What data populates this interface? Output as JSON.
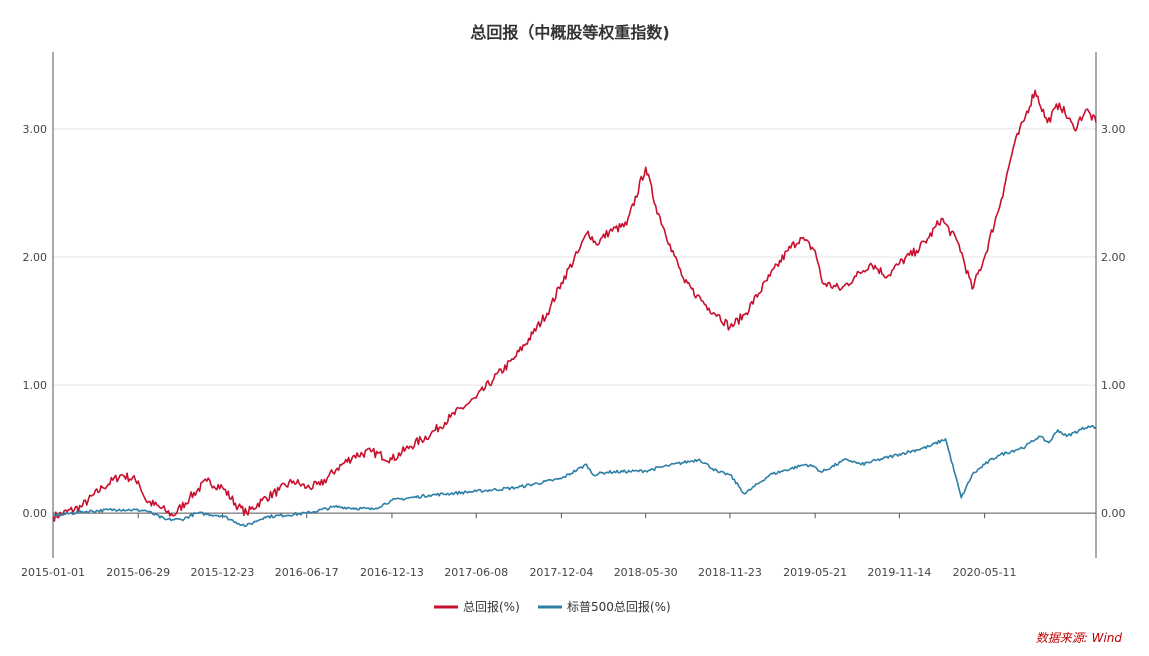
{
  "chart_data": {
    "type": "line",
    "title": "总回报（中概股等权重指数)",
    "xlabel": "",
    "ylabel": "",
    "x_ticks": [
      "2015-01-01",
      "2015-06-29",
      "2015-12-23",
      "2016-06-17",
      "2016-12-13",
      "2017-06-08",
      "2017-12-04",
      "2018-05-30",
      "2018-11-23",
      "2019-05-21",
      "2019-11-14",
      "2020-05-11"
    ],
    "y_ticks_left": [
      "0.00",
      "1.00",
      "2.00",
      "3.00"
    ],
    "y_ticks_right": [
      "0.00",
      "1.00",
      "2.00",
      "3.00"
    ],
    "ylim": [
      -0.35,
      3.6
    ],
    "grid": true,
    "legend_position": "bottom",
    "series": [
      {
        "name": "总回报(%)",
        "color": "#c8102e",
        "x": [
          "2015-01-01",
          "2015-03-01",
          "2015-04-15",
          "2015-05-25",
          "2015-06-29",
          "2015-07-15",
          "2015-08-25",
          "2015-09-10",
          "2015-10-15",
          "2015-11-20",
          "2015-12-23",
          "2016-01-25",
          "2016-02-12",
          "2016-03-15",
          "2016-04-20",
          "2016-05-20",
          "2016-06-17",
          "2016-07-15",
          "2016-08-20",
          "2016-09-25",
          "2016-10-30",
          "2016-12-13",
          "2017-01-20",
          "2017-03-05",
          "2017-04-15",
          "2017-05-20",
          "2017-06-08",
          "2017-07-15",
          "2017-08-25",
          "2017-10-05",
          "2017-11-10",
          "2017-12-04",
          "2018-01-10",
          "2018-01-29",
          "2018-02-15",
          "2018-03-15",
          "2018-04-20",
          "2018-05-30",
          "2018-06-20",
          "2018-07-20",
          "2018-08-20",
          "2018-09-15",
          "2018-10-10",
          "2018-10-29",
          "2018-11-23",
          "2018-12-24",
          "2019-02-15",
          "2019-03-25",
          "2019-04-20",
          "2019-05-21",
          "2019-06-05",
          "2019-07-15",
          "2019-08-15",
          "2019-09-15",
          "2019-10-20",
          "2019-11-14",
          "2019-12-20",
          "2020-01-15",
          "2020-02-10",
          "2020-03-18",
          "2020-04-15",
          "2020-05-11",
          "2020-06-15",
          "2020-07-10",
          "2020-08-05",
          "2020-08-25",
          "2020-09-20",
          "2020-10-15",
          "2020-11-15",
          "2020-12-10",
          "2020-12-31"
        ],
        "values": [
          -0.03,
          0.05,
          0.2,
          0.3,
          0.25,
          0.1,
          0.02,
          -0.02,
          0.12,
          0.25,
          0.2,
          0.05,
          0.0,
          0.1,
          0.18,
          0.25,
          0.2,
          0.22,
          0.35,
          0.45,
          0.48,
          0.42,
          0.52,
          0.62,
          0.75,
          0.85,
          0.9,
          1.05,
          1.2,
          1.4,
          1.6,
          1.8,
          2.05,
          2.2,
          2.1,
          2.2,
          2.25,
          2.7,
          2.4,
          2.1,
          1.8,
          1.7,
          1.6,
          1.55,
          1.45,
          1.55,
          1.85,
          2.05,
          2.15,
          2.05,
          1.8,
          1.75,
          1.85,
          1.95,
          1.85,
          1.95,
          2.05,
          2.15,
          2.3,
          2.1,
          1.75,
          2.0,
          2.45,
          2.85,
          3.1,
          3.3,
          3.05,
          3.2,
          3.0,
          3.15,
          3.05
        ]
      },
      {
        "name": "标普500总回报(%)",
        "color": "#2e7fa6",
        "x": [
          "2015-01-01",
          "2015-03-01",
          "2015-05-20",
          "2015-07-15",
          "2015-08-25",
          "2015-09-28",
          "2015-10-30",
          "2015-12-23",
          "2016-01-20",
          "2016-02-11",
          "2016-03-20",
          "2016-06-17",
          "2016-08-15",
          "2016-11-03",
          "2016-12-13",
          "2017-03-01",
          "2017-06-08",
          "2017-09-01",
          "2017-12-04",
          "2018-01-26",
          "2018-02-08",
          "2018-03-10",
          "2018-05-30",
          "2018-07-15",
          "2018-09-20",
          "2018-10-29",
          "2018-11-23",
          "2018-12-24",
          "2019-02-15",
          "2019-04-30",
          "2019-05-21",
          "2019-06-03",
          "2019-07-26",
          "2019-08-26",
          "2019-11-14",
          "2020-01-15",
          "2020-02-19",
          "2020-03-23",
          "2020-04-15",
          "2020-05-11",
          "2020-06-08",
          "2020-08-05",
          "2020-09-02",
          "2020-09-23",
          "2020-10-12",
          "2020-10-30",
          "2020-12-15",
          "2020-12-31"
        ],
        "values": [
          -0.02,
          0.01,
          0.03,
          0.02,
          -0.05,
          -0.05,
          0.0,
          -0.02,
          -0.07,
          -0.1,
          -0.03,
          0.0,
          0.05,
          0.03,
          0.1,
          0.14,
          0.17,
          0.2,
          0.27,
          0.38,
          0.3,
          0.32,
          0.33,
          0.37,
          0.42,
          0.32,
          0.3,
          0.15,
          0.3,
          0.38,
          0.36,
          0.32,
          0.42,
          0.38,
          0.46,
          0.52,
          0.58,
          0.12,
          0.3,
          0.38,
          0.45,
          0.52,
          0.6,
          0.55,
          0.65,
          0.6,
          0.68,
          0.67
        ]
      }
    ]
  },
  "legend": {
    "item1": "总回报(%)",
    "item2": "标普500总回报(%)"
  },
  "source": "数据来源: Wind"
}
